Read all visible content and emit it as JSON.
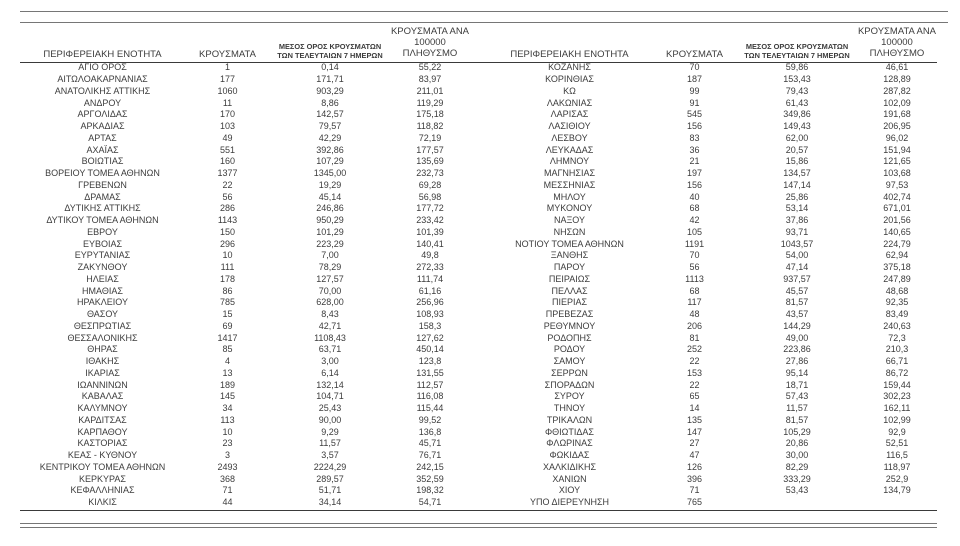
{
  "page": {
    "background": "#ffffff",
    "text_color": "#3c3c3c",
    "thin_line_color": "#767676",
    "rule_line_color": "#3a3a3a"
  },
  "columns_display": {
    "region": "ΠΕΡΙΦΕΡΕΙΑΚΗ ΕΝΟΤΗΤΑ",
    "cases": "ΚΡΟΥΣΜΑΤΑ",
    "avg7_line1": "ΜΕΣΟΣ ΟΡΟΣ ΚΡΟΥΣΜΑΤΩΝ",
    "avg7_line2": "ΤΩΝ ΤΕΛΕΥΤΑΙΩΝ 7 ΗΜΕΡΩΝ",
    "per100k_line1": "ΚΡΟΥΣΜΑΤΑ ΑΝΑ 100000",
    "per100k_line2": "ΠΛΗΘΥΣΜΟ"
  },
  "chart_data": [
    {
      "type": "table",
      "columns": [
        "ΠΕΡΙΦΕΡΕΙΑΚΗ ΕΝΟΤΗΤΑ",
        "ΚΡΟΥΣΜΑΤΑ",
        "ΜΕΣΟΣ ΟΡΟΣ ΚΡΟΥΣΜΑΤΩΝ ΤΩΝ ΤΕΛΕΥΤΑΙΩΝ 7 ΗΜΕΡΩΝ",
        "ΚΡΟΥΣΜΑΤΑ ΑΝΑ 100000 ΠΛΗΘΥΣΜΟ"
      ],
      "rows": [
        [
          "ΑΓΙΟ ΟΡΟΣ",
          "1",
          "0,14",
          "55,22"
        ],
        [
          "ΑΙΤΩΛΟΑΚΑΡΝΑΝΙΑΣ",
          "177",
          "171,71",
          "83,97"
        ],
        [
          "ΑΝΑΤΟΛΙΚΗΣ ΑΤΤΙΚΗΣ",
          "1060",
          "903,29",
          "211,01"
        ],
        [
          "ΑΝΔΡΟΥ",
          "11",
          "8,86",
          "119,29"
        ],
        [
          "ΑΡΓΟΛΙΔΑΣ",
          "170",
          "142,57",
          "175,18"
        ],
        [
          "ΑΡΚΑΔΙΑΣ",
          "103",
          "79,57",
          "118,82"
        ],
        [
          "ΑΡΤΑΣ",
          "49",
          "42,29",
          "72,19"
        ],
        [
          "ΑΧΑΪΑΣ",
          "551",
          "392,86",
          "177,57"
        ],
        [
          "ΒΟΙΩΤΙΑΣ",
          "160",
          "107,29",
          "135,69"
        ],
        [
          "ΒΟΡΕΙΟΥ ΤΟΜΕΑ ΑΘΗΝΩΝ",
          "1377",
          "1345,00",
          "232,73"
        ],
        [
          "ΓΡΕΒΕΝΩΝ",
          "22",
          "19,29",
          "69,28"
        ],
        [
          "ΔΡΑΜΑΣ",
          "56",
          "45,14",
          "56,98"
        ],
        [
          "ΔΥΤΙΚΗΣ ΑΤΤΙΚΗΣ",
          "286",
          "246,86",
          "177,72"
        ],
        [
          "ΔΥΤΙΚΟΥ ΤΟΜΕΑ ΑΘΗΝΩΝ",
          "1143",
          "950,29",
          "233,42"
        ],
        [
          "ΕΒΡΟΥ",
          "150",
          "101,29",
          "101,39"
        ],
        [
          "ΕΥΒΟΙΑΣ",
          "296",
          "223,29",
          "140,41"
        ],
        [
          "ΕΥΡΥΤΑΝΙΑΣ",
          "10",
          "7,00",
          "49,8"
        ],
        [
          "ΖΑΚΥΝΘΟΥ",
          "111",
          "78,29",
          "272,33"
        ],
        [
          "ΗΛΕΙΑΣ",
          "178",
          "127,57",
          "111,74"
        ],
        [
          "ΗΜΑΘΙΑΣ",
          "86",
          "70,00",
          "61,16"
        ],
        [
          "ΗΡΑΚΛΕΙΟΥ",
          "785",
          "628,00",
          "256,96"
        ],
        [
          "ΘΑΣΟΥ",
          "15",
          "8,43",
          "108,93"
        ],
        [
          "ΘΕΣΠΡΩΤΙΑΣ",
          "69",
          "42,71",
          "158,3"
        ],
        [
          "ΘΕΣΣΑΛΟΝΙΚΗΣ",
          "1417",
          "1108,43",
          "127,62"
        ],
        [
          "ΘΗΡΑΣ",
          "85",
          "63,71",
          "450,14"
        ],
        [
          "ΙΘΑΚΗΣ",
          "4",
          "3,00",
          "123,8"
        ],
        [
          "ΙΚΑΡΙΑΣ",
          "13",
          "6,14",
          "131,55"
        ],
        [
          "ΙΩΑΝΝΙΝΩΝ",
          "189",
          "132,14",
          "112,57"
        ],
        [
          "ΚΑΒΑΛΑΣ",
          "145",
          "104,71",
          "116,08"
        ],
        [
          "ΚΑΛΥΜΝΟΥ",
          "34",
          "25,43",
          "115,44"
        ],
        [
          "ΚΑΡΔΙΤΣΑΣ",
          "113",
          "90,00",
          "99,52"
        ],
        [
          "ΚΑΡΠΑΘΟΥ",
          "10",
          "9,29",
          "136,8"
        ],
        [
          "ΚΑΣΤΟΡΙΑΣ",
          "23",
          "11,57",
          "45,71"
        ],
        [
          "ΚΕΑΣ - ΚΥΘΝΟΥ",
          "3",
          "3,57",
          "76,71"
        ],
        [
          "ΚΕΝΤΡΙΚΟΥ ΤΟΜΕΑ ΑΘΗΝΩΝ",
          "2493",
          "2224,29",
          "242,15"
        ],
        [
          "ΚΕΡΚΥΡΑΣ",
          "368",
          "289,57",
          "352,59"
        ],
        [
          "ΚΕΦΑΛΛΗΝΙΑΣ",
          "71",
          "51,71",
          "198,32"
        ],
        [
          "ΚΙΛΚΙΣ",
          "44",
          "34,14",
          "54,71"
        ]
      ]
    },
    {
      "type": "table",
      "columns": [
        "ΠΕΡΙΦΕΡΕΙΑΚΗ ΕΝΟΤΗΤΑ",
        "ΚΡΟΥΣΜΑΤΑ",
        "ΜΕΣΟΣ ΟΡΟΣ ΚΡΟΥΣΜΑΤΩΝ ΤΩΝ ΤΕΛΕΥΤΑΙΩΝ 7 ΗΜΕΡΩΝ",
        "ΚΡΟΥΣΜΑΤΑ ΑΝΑ 100000 ΠΛΗΘΥΣΜΟ"
      ],
      "rows": [
        [
          "ΚΟΖΑΝΗΣ",
          "70",
          "59,86",
          "46,61"
        ],
        [
          "ΚΟΡΙΝΘΙΑΣ",
          "187",
          "153,43",
          "128,89"
        ],
        [
          "ΚΩ",
          "99",
          "79,43",
          "287,82"
        ],
        [
          "ΛΑΚΩΝΙΑΣ",
          "91",
          "61,43",
          "102,09"
        ],
        [
          "ΛΑΡΙΣΑΣ",
          "545",
          "349,86",
          "191,68"
        ],
        [
          "ΛΑΣΙΘΙΟΥ",
          "156",
          "149,43",
          "206,95"
        ],
        [
          "ΛΕΣΒΟΥ",
          "83",
          "62,00",
          "96,02"
        ],
        [
          "ΛΕΥΚΑΔΑΣ",
          "36",
          "20,57",
          "151,94"
        ],
        [
          "ΛΗΜΝΟΥ",
          "21",
          "15,86",
          "121,65"
        ],
        [
          "ΜΑΓΝΗΣΙΑΣ",
          "197",
          "134,57",
          "103,68"
        ],
        [
          "ΜΕΣΣΗΝΙΑΣ",
          "156",
          "147,14",
          "97,53"
        ],
        [
          "ΜΗΛΟΥ",
          "40",
          "25,86",
          "402,74"
        ],
        [
          "ΜΥΚΟΝΟΥ",
          "68",
          "53,14",
          "671,01"
        ],
        [
          "ΝΑΞΟΥ",
          "42",
          "37,86",
          "201,56"
        ],
        [
          "ΝΗΣΩΝ",
          "105",
          "93,71",
          "140,65"
        ],
        [
          "ΝΟΤΙΟΥ ΤΟΜΕΑ ΑΘΗΝΩΝ",
          "1191",
          "1043,57",
          "224,79"
        ],
        [
          "ΞΑΝΘΗΣ",
          "70",
          "54,00",
          "62,94"
        ],
        [
          "ΠΑΡΟΥ",
          "56",
          "47,14",
          "375,18"
        ],
        [
          "ΠΕΙΡΑΙΩΣ",
          "1113",
          "937,57",
          "247,89"
        ],
        [
          "ΠΕΛΛΑΣ",
          "68",
          "45,57",
          "48,68"
        ],
        [
          "ΠΙΕΡΙΑΣ",
          "117",
          "81,57",
          "92,35"
        ],
        [
          "ΠΡΕΒΕΖΑΣ",
          "48",
          "43,57",
          "83,49"
        ],
        [
          "ΡΕΘΥΜΝΟΥ",
          "206",
          "144,29",
          "240,63"
        ],
        [
          "ΡΟΔΟΠΗΣ",
          "81",
          "49,00",
          "72,3"
        ],
        [
          "ΡΟΔΟΥ",
          "252",
          "223,86",
          "210,3"
        ],
        [
          "ΣΑΜΟΥ",
          "22",
          "27,86",
          "66,71"
        ],
        [
          "ΣΕΡΡΩΝ",
          "153",
          "95,14",
          "86,72"
        ],
        [
          "ΣΠΟΡΑΔΩΝ",
          "22",
          "18,71",
          "159,44"
        ],
        [
          "ΣΥΡΟΥ",
          "65",
          "57,43",
          "302,23"
        ],
        [
          "ΤΗΝΟΥ",
          "14",
          "11,57",
          "162,11"
        ],
        [
          "ΤΡΙΚΑΛΩΝ",
          "135",
          "81,57",
          "102,99"
        ],
        [
          "ΦΘΙΩΤΙΔΑΣ",
          "147",
          "105,29",
          "92,9"
        ],
        [
          "ΦΛΩΡΙΝΑΣ",
          "27",
          "20,86",
          "52,51"
        ],
        [
          "ΦΩΚΙΔΑΣ",
          "47",
          "30,00",
          "116,5"
        ],
        [
          "ΧΑΛΚΙΔΙΚΗΣ",
          "126",
          "82,29",
          "118,97"
        ],
        [
          "ΧΑΝΙΩΝ",
          "396",
          "333,29",
          "252,9"
        ],
        [
          "ΧΙΟΥ",
          "71",
          "53,43",
          "134,79"
        ],
        [
          "ΥΠΟ ΔΙΕΡΕΥΝΗΣΗ",
          "765",
          "",
          ""
        ]
      ]
    }
  ]
}
